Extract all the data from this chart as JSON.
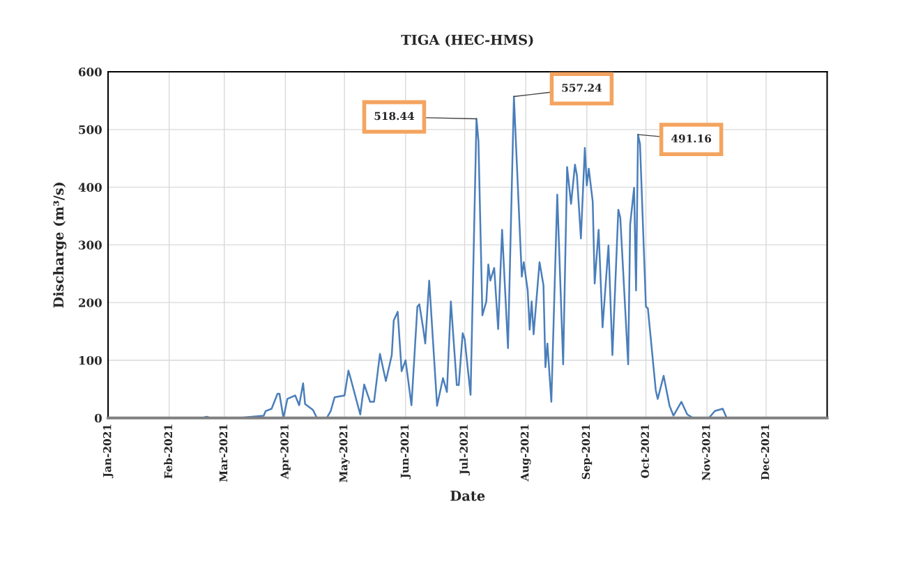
{
  "chart_data": {
    "type": "line",
    "title": "TIGA (HEC-HMS)",
    "xlabel": "Date",
    "ylabel": "Discharge (m³/s)",
    "x": [
      "2021-01-01",
      "2021-02-18",
      "2021-02-20",
      "2021-02-22",
      "2021-03-08",
      "2021-03-21",
      "2021-03-22",
      "2021-03-25",
      "2021-03-28",
      "2021-03-29",
      "2021-03-31",
      "2021-04-02",
      "2021-04-06",
      "2021-04-08",
      "2021-04-10",
      "2021-04-11",
      "2021-04-15",
      "2021-04-17",
      "2021-04-22",
      "2021-04-24",
      "2021-04-26",
      "2021-05-01",
      "2021-05-03",
      "2021-05-04",
      "2021-05-09",
      "2021-05-11",
      "2021-05-14",
      "2021-05-16",
      "2021-05-19",
      "2021-05-22",
      "2021-05-25",
      "2021-05-26",
      "2021-05-28",
      "2021-05-30",
      "2021-06-01",
      "2021-06-04",
      "2021-06-07",
      "2021-06-08",
      "2021-06-10",
      "2021-06-11",
      "2021-06-13",
      "2021-06-17",
      "2021-06-20",
      "2021-06-22",
      "2021-06-24",
      "2021-06-27",
      "2021-06-28",
      "2021-06-30",
      "2021-07-01",
      "2021-07-04",
      "2021-07-07",
      "2021-07-08",
      "2021-07-10",
      "2021-07-12",
      "2021-07-13",
      "2021-07-14",
      "2021-07-16",
      "2021-07-18",
      "2021-07-20",
      "2021-07-23",
      "2021-07-26",
      "2021-07-30",
      "2021-07-31",
      "2021-08-02",
      "2021-08-03",
      "2021-08-04",
      "2021-08-05",
      "2021-08-08",
      "2021-08-10",
      "2021-08-11",
      "2021-08-12",
      "2021-08-14",
      "2021-08-17",
      "2021-08-20",
      "2021-08-22",
      "2021-08-24",
      "2021-08-26",
      "2021-08-27",
      "2021-08-29",
      "2021-08-31",
      "2021-09-01",
      "2021-09-02",
      "2021-09-04",
      "2021-09-05",
      "2021-09-07",
      "2021-09-09",
      "2021-09-12",
      "2021-09-14",
      "2021-09-17",
      "2021-09-18",
      "2021-09-22",
      "2021-09-23",
      "2021-09-25",
      "2021-09-26",
      "2021-09-27",
      "2021-09-28",
      "2021-10-01",
      "2021-10-02",
      "2021-10-06",
      "2021-10-07",
      "2021-10-10",
      "2021-10-13",
      "2021-10-15",
      "2021-10-19",
      "2021-10-22",
      "2021-10-25",
      "2021-11-02",
      "2021-11-05",
      "2021-11-09",
      "2021-11-11",
      "2021-12-31"
    ],
    "series": [
      {
        "color": "#4a7ebb",
        "values": [
          0,
          0,
          2,
          0,
          0,
          4,
          12,
          16,
          42,
          42,
          0,
          33,
          39,
          22,
          60,
          24,
          14,
          0,
          0,
          12,
          36,
          39,
          82,
          70,
          6,
          58,
          28,
          28,
          111,
          64,
          109,
          169,
          184,
          81,
          100,
          22,
          193,
          197,
          154,
          129,
          238,
          21,
          69,
          45,
          202,
          57,
          57,
          147,
          137,
          40,
          518.44,
          480,
          178,
          202,
          266,
          238,
          260,
          154,
          326,
          121,
          557.24,
          245,
          270,
          221,
          153,
          202,
          145,
          270,
          230,
          88,
          129,
          28,
          387,
          93,
          435,
          371,
          439,
          420,
          311,
          468,
          403,
          432,
          375,
          233,
          326,
          157,
          299,
          109,
          361,
          347,
          93,
          335,
          399,
          221,
          491.16,
          475,
          193,
          190,
          48,
          33,
          73,
          21,
          4,
          28,
          6,
          0,
          0,
          12,
          16,
          0,
          0
        ]
      }
    ],
    "xlim": [
      "2021-01-01",
      "2022-01-01"
    ],
    "xticks": [
      {
        "value": "2021-01-01",
        "label": "Jan-2021"
      },
      {
        "value": "2021-02-01",
        "label": "Feb-2021"
      },
      {
        "value": "2021-03-01",
        "label": "Mar-2021"
      },
      {
        "value": "2021-04-01",
        "label": "Apr-2021"
      },
      {
        "value": "2021-05-01",
        "label": "May-2021"
      },
      {
        "value": "2021-06-01",
        "label": "Jun-2021"
      },
      {
        "value": "2021-07-01",
        "label": "Jul-2021"
      },
      {
        "value": "2021-08-01",
        "label": "Aug-2021"
      },
      {
        "value": "2021-09-01",
        "label": "Sep-2021"
      },
      {
        "value": "2021-10-01",
        "label": "Oct-2021"
      },
      {
        "value": "2021-11-01",
        "label": "Nov-2021"
      },
      {
        "value": "2021-12-01",
        "label": "Dec-2021"
      }
    ],
    "ylim": [
      0,
      600
    ],
    "yticks": [
      0,
      100,
      200,
      300,
      400,
      500,
      600
    ],
    "grid": true,
    "annotations": [
      {
        "text": "518.44",
        "x": "2021-07-07",
        "y": 518.44
      },
      {
        "text": "557.24",
        "x": "2021-07-26",
        "y": 557.24
      },
      {
        "text": "491.16",
        "x": "2021-09-27",
        "y": 491.16
      }
    ]
  }
}
